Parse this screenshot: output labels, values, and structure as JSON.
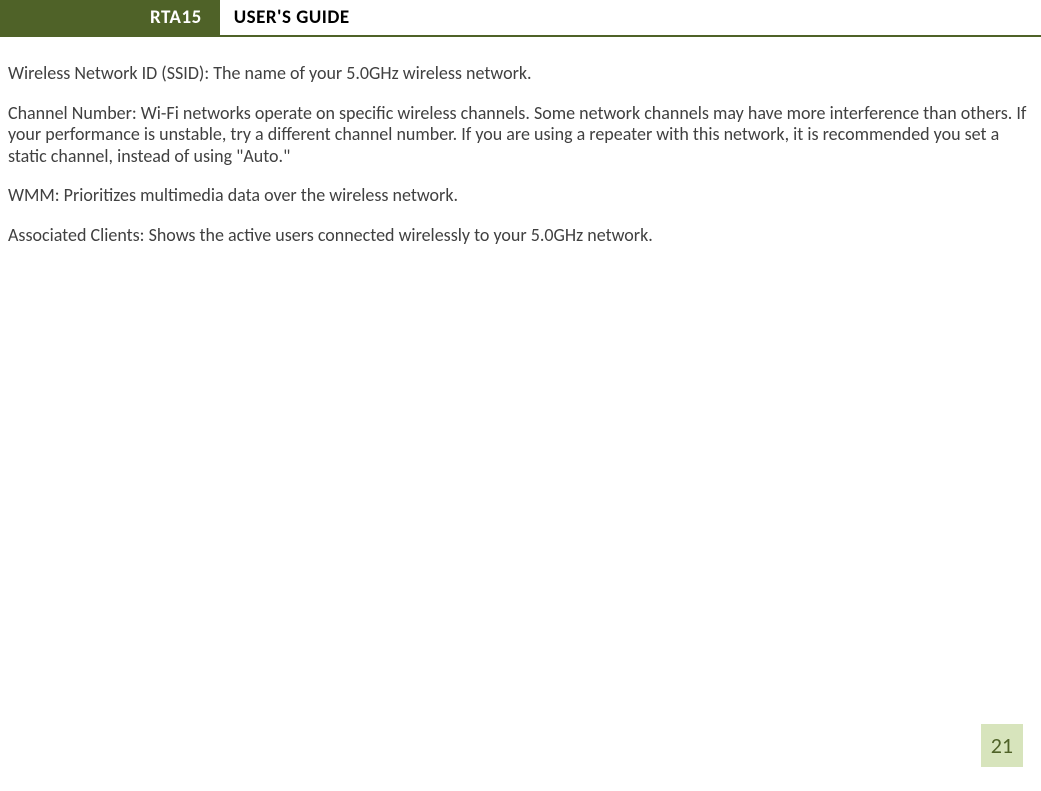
{
  "header": {
    "tab_label": "RTA15",
    "title": "USER'S GUIDE"
  },
  "paragraphs": {
    "p1": "Wireless Network ID (SSID): The name of your 5.0GHz wireless network.",
    "p2": "Channel Number:  Wi-Fi networks operate on specific wireless channels. Some network channels may have more interference than others. If your performance is unstable, try a different channel number. If you are using a repeater with this network, it is recommended you set a static channel, instead of using \"Auto.\"",
    "p3": "WMM: Prioritizes multimedia data over the wireless network.",
    "p4": "Associated Clients: Shows the active users connected wirelessly to your 5.0GHz network."
  },
  "page_number": "21",
  "colors": {
    "header_bg": "#4f6228",
    "header_text": "#ffffff",
    "title_text": "#000000",
    "body_text": "#404040",
    "pagenum_bg": "#d7e4bc",
    "pagenum_text": "#4f6228",
    "page_bg": "#ffffff"
  }
}
